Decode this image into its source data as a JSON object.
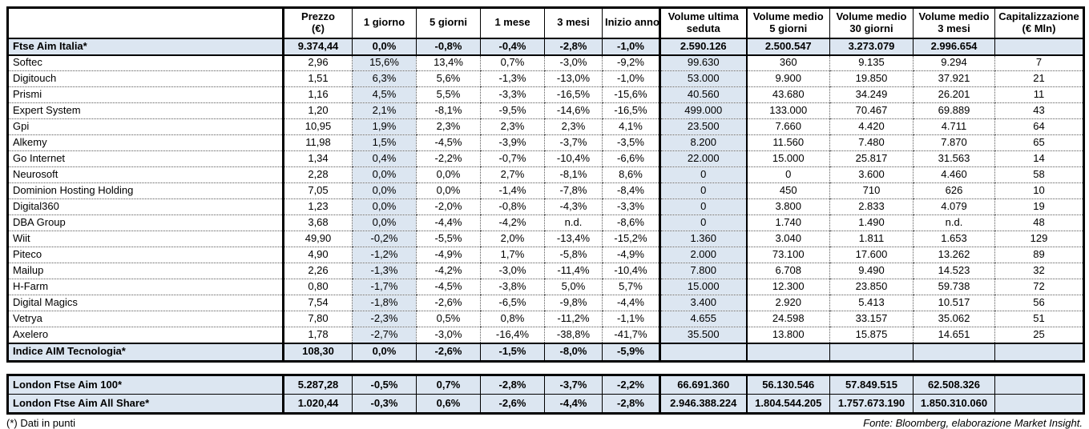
{
  "main_table": {
    "columns": [
      {
        "label": "",
        "sub": ""
      },
      {
        "label": "Prezzo",
        "sub": "(€)"
      },
      {
        "label": "1 giorno",
        "sub": ""
      },
      {
        "label": "5 giorni",
        "sub": ""
      },
      {
        "label": "1 mese",
        "sub": ""
      },
      {
        "label": "3 mesi",
        "sub": ""
      },
      {
        "label": "Inizio anno",
        "sub": ""
      },
      {
        "label": "Volume ultima",
        "sub": "seduta"
      },
      {
        "label": "Volume medio",
        "sub": "5 giorni"
      },
      {
        "label": "Volume medio",
        "sub": "30 giorni"
      },
      {
        "label": "Volume medio",
        "sub": "3 mesi"
      },
      {
        "label": "Capitalizzazione",
        "sub": "(€ Mln)"
      }
    ],
    "index_row": {
      "name": "Ftse Aim Italia*",
      "values": [
        "9.374,44",
        "0,0%",
        "-0,8%",
        "-0,4%",
        "-2,8%",
        "-1,0%",
        "2.590.126",
        "2.500.547",
        "3.273.079",
        "2.996.654",
        ""
      ]
    },
    "rows": [
      {
        "name": "Softec",
        "values": [
          "2,96",
          "15,6%",
          "13,4%",
          "0,7%",
          "-3,0%",
          "-9,2%",
          "99.630",
          "360",
          "9.135",
          "9.294",
          "7"
        ]
      },
      {
        "name": "Digitouch",
        "values": [
          "1,51",
          "6,3%",
          "5,6%",
          "-1,3%",
          "-13,0%",
          "-1,0%",
          "53.000",
          "9.900",
          "19.850",
          "37.921",
          "21"
        ]
      },
      {
        "name": "Prismi",
        "values": [
          "1,16",
          "4,5%",
          "5,5%",
          "-3,3%",
          "-16,5%",
          "-15,6%",
          "40.560",
          "43.680",
          "34.249",
          "26.201",
          "11"
        ]
      },
      {
        "name": "Expert System",
        "values": [
          "1,20",
          "2,1%",
          "-8,1%",
          "-9,5%",
          "-14,6%",
          "-16,5%",
          "499.000",
          "133.000",
          "70.467",
          "69.889",
          "43"
        ]
      },
      {
        "name": "Gpi",
        "values": [
          "10,95",
          "1,9%",
          "2,3%",
          "2,3%",
          "2,3%",
          "4,1%",
          "23.500",
          "7.660",
          "4.420",
          "4.711",
          "64"
        ]
      },
      {
        "name": "Alkemy",
        "values": [
          "11,98",
          "1,5%",
          "-4,5%",
          "-3,9%",
          "-3,7%",
          "-3,5%",
          "8.200",
          "11.560",
          "7.480",
          "7.870",
          "65"
        ]
      },
      {
        "name": "Go Internet",
        "values": [
          "1,34",
          "0,4%",
          "-2,2%",
          "-0,7%",
          "-10,4%",
          "-6,6%",
          "22.000",
          "15.000",
          "25.817",
          "31.563",
          "14"
        ]
      },
      {
        "name": "Neurosoft",
        "values": [
          "2,28",
          "0,0%",
          "0,0%",
          "2,7%",
          "-8,1%",
          "8,6%",
          "0",
          "0",
          "3.600",
          "4.460",
          "58"
        ]
      },
      {
        "name": "Dominion Hosting Holding",
        "values": [
          "7,05",
          "0,0%",
          "0,0%",
          "-1,4%",
          "-7,8%",
          "-8,4%",
          "0",
          "450",
          "710",
          "626",
          "10"
        ]
      },
      {
        "name": "Digital360",
        "values": [
          "1,23",
          "0,0%",
          "-2,0%",
          "-0,8%",
          "-4,3%",
          "-3,3%",
          "0",
          "3.800",
          "2.833",
          "4.079",
          "19"
        ]
      },
      {
        "name": "DBA Group",
        "values": [
          "3,68",
          "0,0%",
          "-4,4%",
          "-4,2%",
          "n.d.",
          "-8,6%",
          "0",
          "1.740",
          "1.490",
          "n.d.",
          "48"
        ]
      },
      {
        "name": "Wiit",
        "values": [
          "49,90",
          "-0,2%",
          "-5,5%",
          "2,0%",
          "-13,4%",
          "-15,2%",
          "1.360",
          "3.040",
          "1.811",
          "1.653",
          "129"
        ]
      },
      {
        "name": "Piteco",
        "values": [
          "4,90",
          "-1,2%",
          "-4,9%",
          "1,7%",
          "-5,8%",
          "-4,9%",
          "2.000",
          "73.100",
          "17.600",
          "13.262",
          "89"
        ]
      },
      {
        "name": "Mailup",
        "values": [
          "2,26",
          "-1,3%",
          "-4,2%",
          "-3,0%",
          "-11,4%",
          "-10,4%",
          "7.800",
          "6.708",
          "9.490",
          "14.523",
          "32"
        ]
      },
      {
        "name": "H-Farm",
        "values": [
          "0,80",
          "-1,7%",
          "-4,5%",
          "-3,8%",
          "5,0%",
          "5,7%",
          "15.000",
          "12.300",
          "23.850",
          "59.738",
          "72"
        ]
      },
      {
        "name": "Digital Magics",
        "values": [
          "7,54",
          "-1,8%",
          "-2,6%",
          "-6,5%",
          "-9,8%",
          "-4,4%",
          "3.400",
          "2.920",
          "5.413",
          "10.517",
          "56"
        ]
      },
      {
        "name": "Vetrya",
        "values": [
          "7,80",
          "-2,3%",
          "0,5%",
          "0,8%",
          "-11,2%",
          "-1,1%",
          "4.655",
          "24.598",
          "33.157",
          "35.062",
          "51"
        ]
      },
      {
        "name": "Axelero",
        "values": [
          "1,78",
          "-2,7%",
          "-3,0%",
          "-16,4%",
          "-38,8%",
          "-41,7%",
          "35.500",
          "13.800",
          "15.875",
          "14.651",
          "25"
        ]
      }
    ],
    "footer_row": {
      "name": "Indice AIM Tecnologia*",
      "values": [
        "108,30",
        "0,0%",
        "-2,6%",
        "-1,5%",
        "-8,0%",
        "-5,9%",
        "",
        "",
        "",
        "",
        ""
      ]
    }
  },
  "london_table": {
    "rows": [
      {
        "name": "London Ftse Aim 100*",
        "values": [
          "5.287,28",
          "-0,5%",
          "0,7%",
          "-2,8%",
          "-3,7%",
          "-2,2%",
          "66.691.360",
          "56.130.546",
          "57.849.515",
          "62.508.326",
          ""
        ]
      },
      {
        "name": "London Ftse Aim All Share*",
        "values": [
          "1.020,44",
          "-0,3%",
          "0,6%",
          "-2,6%",
          "-4,4%",
          "-2,8%",
          "2.946.388.224",
          "1.804.544.205",
          "1.757.673.190",
          "1.850.310.060",
          ""
        ]
      }
    ]
  },
  "footnotes": {
    "left": "(*) Dati in punti",
    "right": "Fonte: Bloomberg, elaborazione Market Insight."
  },
  "colors": {
    "highlight": "#DCE6F1",
    "border": "#000000",
    "text": "#000000"
  }
}
